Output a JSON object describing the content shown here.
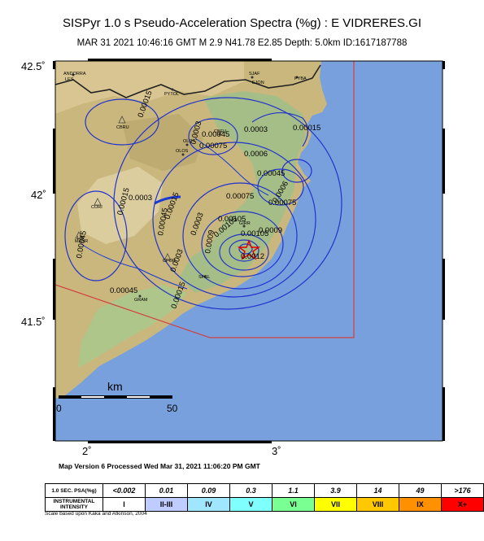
{
  "header": {
    "title": "SISPyr 1.0 s Pseudo-Acceleration Spectra (%g) : E VIDRERES.GI",
    "subtitle": "MAR 31 2021 10:46:16 GMT     M 2.9     N41.78 E2.85     Depth: 5.0km     ID:1617187788"
  },
  "axes": {
    "lat_labels": [
      "42.5˚",
      "42˚",
      "41.5˚"
    ],
    "lon_labels": [
      "2˚",
      "3˚"
    ]
  },
  "scalebar": {
    "unit": "km",
    "start": "0",
    "end": "50"
  },
  "contours": [
    "0.00015",
    "0.0003",
    "0.00045",
    "0.00075",
    "0.0003",
    "0.0006",
    "0.00045",
    "0.00075",
    "0.0003",
    "0.00015",
    "0.00045",
    "0.00015",
    "0.00045",
    "0.0003",
    "0.00105",
    "0.0009",
    "0.00105",
    "0.0012",
    "0.00075",
    "0.00105",
    "0.0003",
    "0.00045",
    "0.00015",
    "0.0006",
    "0.0009",
    "0.00015"
  ],
  "cities": [
    "ANDORRA",
    "LES",
    "CBRU",
    "PYTOL",
    "SJAF",
    "EJON",
    "PYBA",
    "OLOT",
    "CBEU",
    "OLOS",
    "CORI",
    "MANR",
    "CPOR",
    "GIRR",
    "SFGL",
    "GRAM",
    "LIN"
  ],
  "footer": {
    "version": "Map Version 6 Processed Wed Mar 31, 2021 11:06:20 PM GMT",
    "scale_note": "Scale based upon Kaka and Atkinson, 2004"
  },
  "legend": {
    "psa_header": "1.0 SEC. PSA(%g)",
    "intensity_header_1": "INSTRUMENTAL",
    "intensity_header_2": "INTENSITY",
    "psa_values": [
      "<0.002",
      "0.01",
      "0.09",
      "0.3",
      "1.1",
      "3.9",
      "14",
      "49",
      ">176"
    ],
    "intensity_values": [
      "I",
      "II-III",
      "IV",
      "V",
      "VI",
      "VII",
      "VIII",
      "IX",
      "X+"
    ],
    "colors": [
      "#ffffff",
      "#bfccff",
      "#a0e6ff",
      "#80ffff",
      "#7aff93",
      "#ffff00",
      "#ffc800",
      "#ff9100",
      "#ff0000",
      "#c80000"
    ]
  }
}
